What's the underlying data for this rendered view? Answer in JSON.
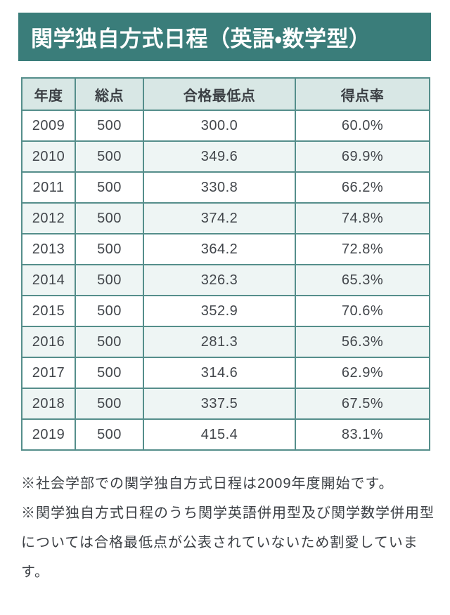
{
  "page": {
    "title": "関学独自方式日程（英語・数学型）"
  },
  "table": {
    "columns": [
      "年度",
      "総点",
      "合格最低点",
      "得点率"
    ],
    "rows": [
      [
        "2009",
        "500",
        "300.0",
        "60.0%"
      ],
      [
        "2010",
        "500",
        "349.6",
        "69.9%"
      ],
      [
        "2011",
        "500",
        "330.8",
        "66.2%"
      ],
      [
        "2012",
        "500",
        "374.2",
        "74.8%"
      ],
      [
        "2013",
        "500",
        "364.2",
        "72.8%"
      ],
      [
        "2014",
        "500",
        "326.3",
        "65.3%"
      ],
      [
        "2015",
        "500",
        "352.9",
        "70.6%"
      ],
      [
        "2016",
        "500",
        "281.3",
        "56.3%"
      ],
      [
        "2017",
        "500",
        "314.6",
        "62.9%"
      ],
      [
        "2018",
        "500",
        "337.5",
        "67.5%"
      ],
      [
        "2019",
        "500",
        "415.4",
        "83.1%"
      ]
    ]
  },
  "notes": [
    "※社会学部での関学独自方式日程は2009年度開始です。",
    "※関学独自方式日程のうち関学英語併用型及び関学数学併用型については合格最低点が公表されていないため割愛しています。"
  ],
  "colors": {
    "accent": "#3a7d7a",
    "table_border": "#558e8b",
    "header_bg": "#d8e7e5",
    "row_alt_bg": "#eef5f4",
    "text": "#3b3f44",
    "title_text": "#ffffff"
  }
}
